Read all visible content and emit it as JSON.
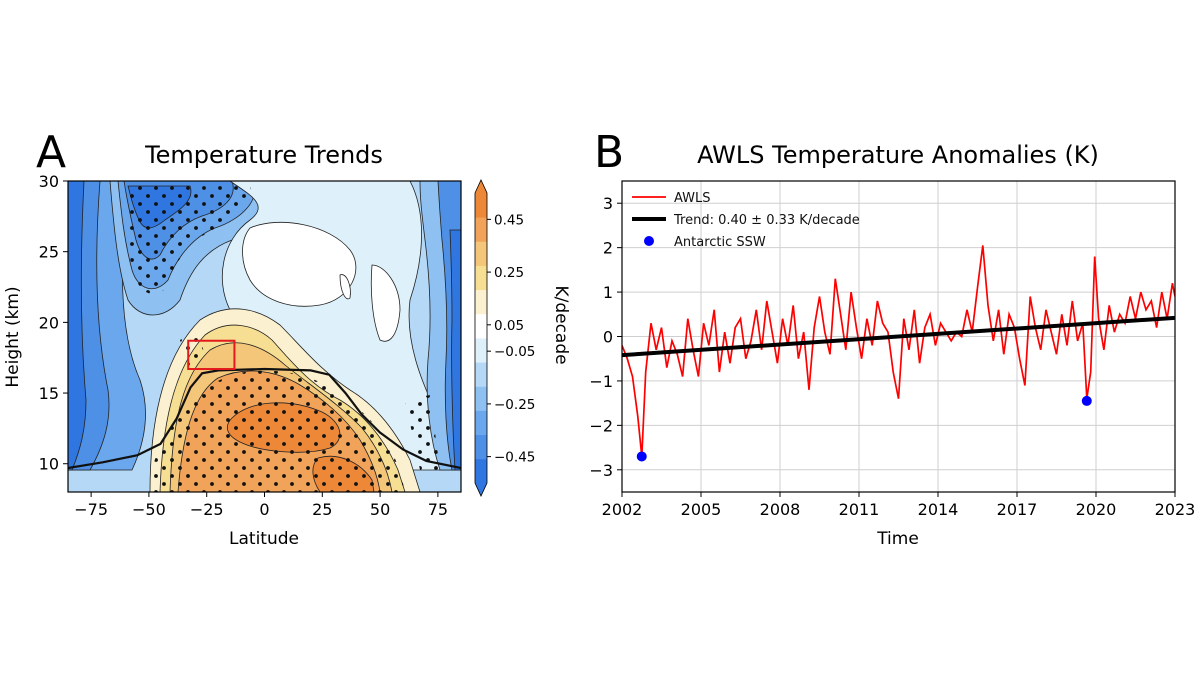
{
  "panels": {
    "a": {
      "label": "A"
    },
    "b": {
      "label": "B"
    }
  },
  "chart_data": [
    {
      "type": "heatmap",
      "title": "Temperature Trends",
      "xlabel": "Latitude",
      "ylabel": "Height (km)",
      "xlim": [
        -85,
        85
      ],
      "ylim": [
        8,
        30
      ],
      "xticks": [
        -75,
        -50,
        -25,
        0,
        25,
        50,
        75
      ],
      "xtick_labels": [
        "−75",
        "−50",
        "−25",
        "0",
        "25",
        "50",
        "75"
      ],
      "yticks": [
        10,
        15,
        20,
        25,
        30
      ],
      "ytick_labels": [
        "10",
        "15",
        "20",
        "25",
        "30"
      ],
      "colorbar": {
        "label": "K/decade",
        "range": [
          -0.55,
          0.55
        ],
        "ticks": [
          0.45,
          0.25,
          0.05,
          -0.05,
          -0.25,
          -0.45
        ],
        "tick_labels": [
          "0.45",
          "0.25",
          "0.05",
          "−0.05",
          "−0.25",
          "−0.45"
        ],
        "colors_low_to_high": [
          "#2f76e0",
          "#4d90e6",
          "#6ba7ec",
          "#8ec0f1",
          "#b4d8f6",
          "#def0fa",
          "#ffffff",
          "#fbf0cf",
          "#f6de93",
          "#f4c67a",
          "#f1a35a",
          "#ec8838"
        ]
      },
      "tropopause_km": [
        [
          -85,
          9.7
        ],
        [
          -70,
          10.1
        ],
        [
          -55,
          10.6
        ],
        [
          -45,
          11.4
        ],
        [
          -38,
          13.2
        ],
        [
          -32,
          15.4
        ],
        [
          -27,
          16.4
        ],
        [
          -20,
          16.6
        ],
        [
          0,
          16.7
        ],
        [
          20,
          16.6
        ],
        [
          28,
          16.3
        ],
        [
          35,
          15.0
        ],
        [
          42,
          13.5
        ],
        [
          50,
          12.2
        ],
        [
          60,
          11.0
        ],
        [
          70,
          10.2
        ],
        [
          85,
          9.7
        ]
      ],
      "highlight_box": {
        "lat": [
          -33,
          -13
        ],
        "height_km": [
          16.7,
          18.7
        ]
      }
    },
    {
      "type": "line",
      "title": "AWLS Temperature Anomalies (K)",
      "xlabel": "Time",
      "ylabel": "",
      "xlim": [
        2002,
        2023
      ],
      "ylim": [
        -3.5,
        3.5
      ],
      "xticks": [
        2002,
        2005,
        2008,
        2011,
        2014,
        2017,
        2020,
        2023
      ],
      "xtick_labels": [
        "2002",
        "2005",
        "2008",
        "2011",
        "2014",
        "2017",
        "2020",
        "2023"
      ],
      "yticks": [
        -3,
        -2,
        -1,
        0,
        1,
        2,
        3
      ],
      "ytick_labels": [
        "−3",
        "−2",
        "−1",
        "0",
        "1",
        "2",
        "3"
      ],
      "legend": {
        "position": "top-left",
        "entries": [
          "AWLS",
          "Trend: 0.40 ± 0.33 K/decade",
          "Antarctic SSW"
        ]
      },
      "series": [
        {
          "name": "AWLS",
          "color": "#ff0000",
          "x": [
            2002.0,
            2002.2,
            2002.4,
            2002.6,
            2002.75,
            2002.9,
            2003.1,
            2003.3,
            2003.5,
            2003.7,
            2003.9,
            2004.1,
            2004.3,
            2004.5,
            2004.7,
            2004.9,
            2005.1,
            2005.3,
            2005.5,
            2005.7,
            2005.9,
            2006.1,
            2006.3,
            2006.5,
            2006.7,
            2006.9,
            2007.1,
            2007.3,
            2007.5,
            2007.7,
            2007.9,
            2008.1,
            2008.3,
            2008.5,
            2008.7,
            2008.9,
            2009.1,
            2009.3,
            2009.5,
            2009.7,
            2009.9,
            2010.1,
            2010.3,
            2010.5,
            2010.7,
            2010.9,
            2011.1,
            2011.3,
            2011.5,
            2011.7,
            2011.9,
            2012.1,
            2012.3,
            2012.5,
            2012.7,
            2012.9,
            2013.1,
            2013.3,
            2013.5,
            2013.7,
            2013.9,
            2014.1,
            2014.3,
            2014.5,
            2014.7,
            2014.9,
            2015.1,
            2015.3,
            2015.5,
            2015.7,
            2015.9,
            2016.1,
            2016.3,
            2016.5,
            2016.7,
            2016.9,
            2017.1,
            2017.3,
            2017.5,
            2017.7,
            2017.9,
            2018.1,
            2018.3,
            2018.5,
            2018.7,
            2018.9,
            2019.1,
            2019.3,
            2019.5,
            2019.65,
            2019.8,
            2019.95,
            2020.1,
            2020.3,
            2020.5,
            2020.7,
            2020.9,
            2021.1,
            2021.3,
            2021.5,
            2021.7,
            2021.9,
            2022.1,
            2022.3,
            2022.5,
            2022.7,
            2022.9,
            2023.0
          ],
          "y": [
            -0.2,
            -0.5,
            -0.9,
            -1.8,
            -2.7,
            -0.8,
            0.3,
            -0.3,
            0.2,
            -0.7,
            -0.1,
            -0.4,
            -0.9,
            0.4,
            -0.3,
            -0.9,
            0.3,
            -0.2,
            0.6,
            -0.8,
            0.1,
            -0.6,
            0.2,
            0.4,
            -0.5,
            -0.1,
            0.6,
            -0.3,
            0.8,
            0.1,
            -0.6,
            0.4,
            -0.2,
            0.7,
            -0.5,
            0.1,
            -1.2,
            0.2,
            0.9,
            0.1,
            -0.4,
            1.3,
            0.5,
            -0.3,
            1.0,
            0.2,
            -0.5,
            0.4,
            -0.2,
            0.8,
            0.3,
            0.1,
            -0.8,
            -1.4,
            0.4,
            -0.3,
            0.6,
            -0.6,
            0.2,
            0.5,
            -0.2,
            0.3,
            0.1,
            -0.1,
            0.1,
            0.0,
            0.6,
            0.1,
            1.1,
            2.05,
            0.7,
            -0.1,
            0.6,
            -0.4,
            0.5,
            0.2,
            -0.5,
            -1.1,
            0.9,
            0.2,
            -0.3,
            0.6,
            0.1,
            -0.4,
            0.5,
            -0.2,
            0.8,
            -0.1,
            0.3,
            -1.4,
            -0.8,
            1.8,
            0.4,
            -0.3,
            0.7,
            0.1,
            0.5,
            0.3,
            0.9,
            0.4,
            1.0,
            0.6,
            0.8,
            0.2,
            1.0,
            0.4,
            1.2,
            0.9
          ]
        },
        {
          "name": "Trend: 0.40 ± 0.33 K/decade",
          "color": "#000000",
          "x": [
            2002,
            2023
          ],
          "y": [
            -0.42,
            0.42
          ]
        },
        {
          "name": "Antarctic SSW",
          "color": "#0000ff",
          "x": [
            2002.75,
            2019.65
          ],
          "y": [
            -2.7,
            -1.45
          ]
        }
      ]
    }
  ]
}
